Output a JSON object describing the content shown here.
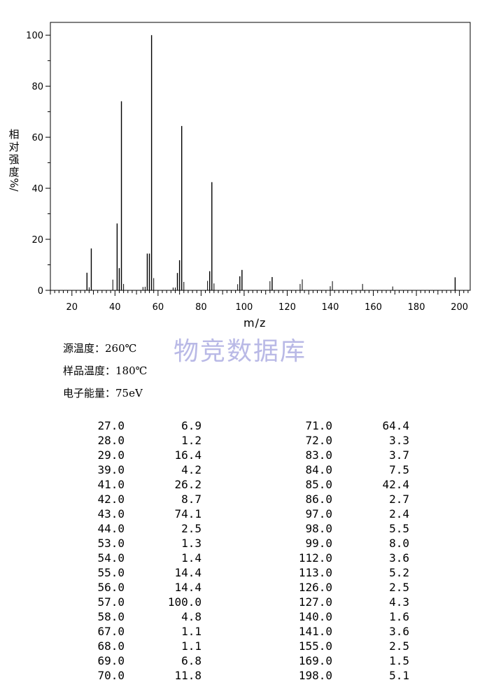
{
  "chart_data": {
    "type": "bar",
    "xlabel": "m/z",
    "ylabel": "相对强度/%",
    "ylabel_chars": [
      "相",
      "对",
      "强",
      "度",
      "%/"
    ],
    "xlim": [
      10,
      205
    ],
    "ylim": [
      0,
      105
    ],
    "xticks": [
      20,
      40,
      60,
      80,
      100,
      120,
      140,
      160,
      180,
      200
    ],
    "yticks": [
      0,
      20,
      40,
      60,
      80,
      100
    ],
    "peaks": [
      {
        "mz": 27.0,
        "intensity": 6.9
      },
      {
        "mz": 28.0,
        "intensity": 1.2
      },
      {
        "mz": 29.0,
        "intensity": 16.4
      },
      {
        "mz": 39.0,
        "intensity": 4.2
      },
      {
        "mz": 41.0,
        "intensity": 26.2
      },
      {
        "mz": 42.0,
        "intensity": 8.7
      },
      {
        "mz": 43.0,
        "intensity": 74.1
      },
      {
        "mz": 44.0,
        "intensity": 2.5
      },
      {
        "mz": 53.0,
        "intensity": 1.3
      },
      {
        "mz": 54.0,
        "intensity": 1.4
      },
      {
        "mz": 55.0,
        "intensity": 14.4
      },
      {
        "mz": 56.0,
        "intensity": 14.4
      },
      {
        "mz": 57.0,
        "intensity": 100.0
      },
      {
        "mz": 58.0,
        "intensity": 4.8
      },
      {
        "mz": 67.0,
        "intensity": 1.1
      },
      {
        "mz": 68.0,
        "intensity": 1.1
      },
      {
        "mz": 69.0,
        "intensity": 6.8
      },
      {
        "mz": 70.0,
        "intensity": 11.8
      },
      {
        "mz": 71.0,
        "intensity": 64.4
      },
      {
        "mz": 72.0,
        "intensity": 3.3
      },
      {
        "mz": 83.0,
        "intensity": 3.7
      },
      {
        "mz": 84.0,
        "intensity": 7.5
      },
      {
        "mz": 85.0,
        "intensity": 42.4
      },
      {
        "mz": 86.0,
        "intensity": 2.7
      },
      {
        "mz": 97.0,
        "intensity": 2.4
      },
      {
        "mz": 98.0,
        "intensity": 5.5
      },
      {
        "mz": 99.0,
        "intensity": 8.0
      },
      {
        "mz": 112.0,
        "intensity": 3.6
      },
      {
        "mz": 113.0,
        "intensity": 5.2
      },
      {
        "mz": 126.0,
        "intensity": 2.5
      },
      {
        "mz": 127.0,
        "intensity": 4.3
      },
      {
        "mz": 140.0,
        "intensity": 1.6
      },
      {
        "mz": 141.0,
        "intensity": 3.6
      },
      {
        "mz": 155.0,
        "intensity": 2.5
      },
      {
        "mz": 169.0,
        "intensity": 1.5
      },
      {
        "mz": 198.0,
        "intensity": 5.1
      }
    ]
  },
  "watermark": "物竞数据库",
  "conditions": {
    "source_temp": "源温度：260℃",
    "sample_temp": "样品温度：180℃",
    "electron_energy": "电子能量：75eV"
  },
  "peak_table": {
    "left": [
      [
        "27.0",
        "6.9"
      ],
      [
        "28.0",
        "1.2"
      ],
      [
        "29.0",
        "16.4"
      ],
      [
        "39.0",
        "4.2"
      ],
      [
        "41.0",
        "26.2"
      ],
      [
        "42.0",
        "8.7"
      ],
      [
        "43.0",
        "74.1"
      ],
      [
        "44.0",
        "2.5"
      ],
      [
        "53.0",
        "1.3"
      ],
      [
        "54.0",
        "1.4"
      ],
      [
        "55.0",
        "14.4"
      ],
      [
        "56.0",
        "14.4"
      ],
      [
        "57.0",
        "100.0"
      ],
      [
        "58.0",
        "4.8"
      ],
      [
        "67.0",
        "1.1"
      ],
      [
        "68.0",
        "1.1"
      ],
      [
        "69.0",
        "6.8"
      ],
      [
        "70.0",
        "11.8"
      ]
    ],
    "right": [
      [
        "71.0",
        "64.4"
      ],
      [
        "72.0",
        "3.3"
      ],
      [
        "83.0",
        "3.7"
      ],
      [
        "84.0",
        "7.5"
      ],
      [
        "85.0",
        "42.4"
      ],
      [
        "86.0",
        "2.7"
      ],
      [
        "97.0",
        "2.4"
      ],
      [
        "98.0",
        "5.5"
      ],
      [
        "99.0",
        "8.0"
      ],
      [
        "112.0",
        "3.6"
      ],
      [
        "113.0",
        "5.2"
      ],
      [
        "126.0",
        "2.5"
      ],
      [
        "127.0",
        "4.3"
      ],
      [
        "140.0",
        "1.6"
      ],
      [
        "141.0",
        "3.6"
      ],
      [
        "155.0",
        "2.5"
      ],
      [
        "169.0",
        "1.5"
      ],
      [
        "198.0",
        "5.1"
      ]
    ]
  }
}
